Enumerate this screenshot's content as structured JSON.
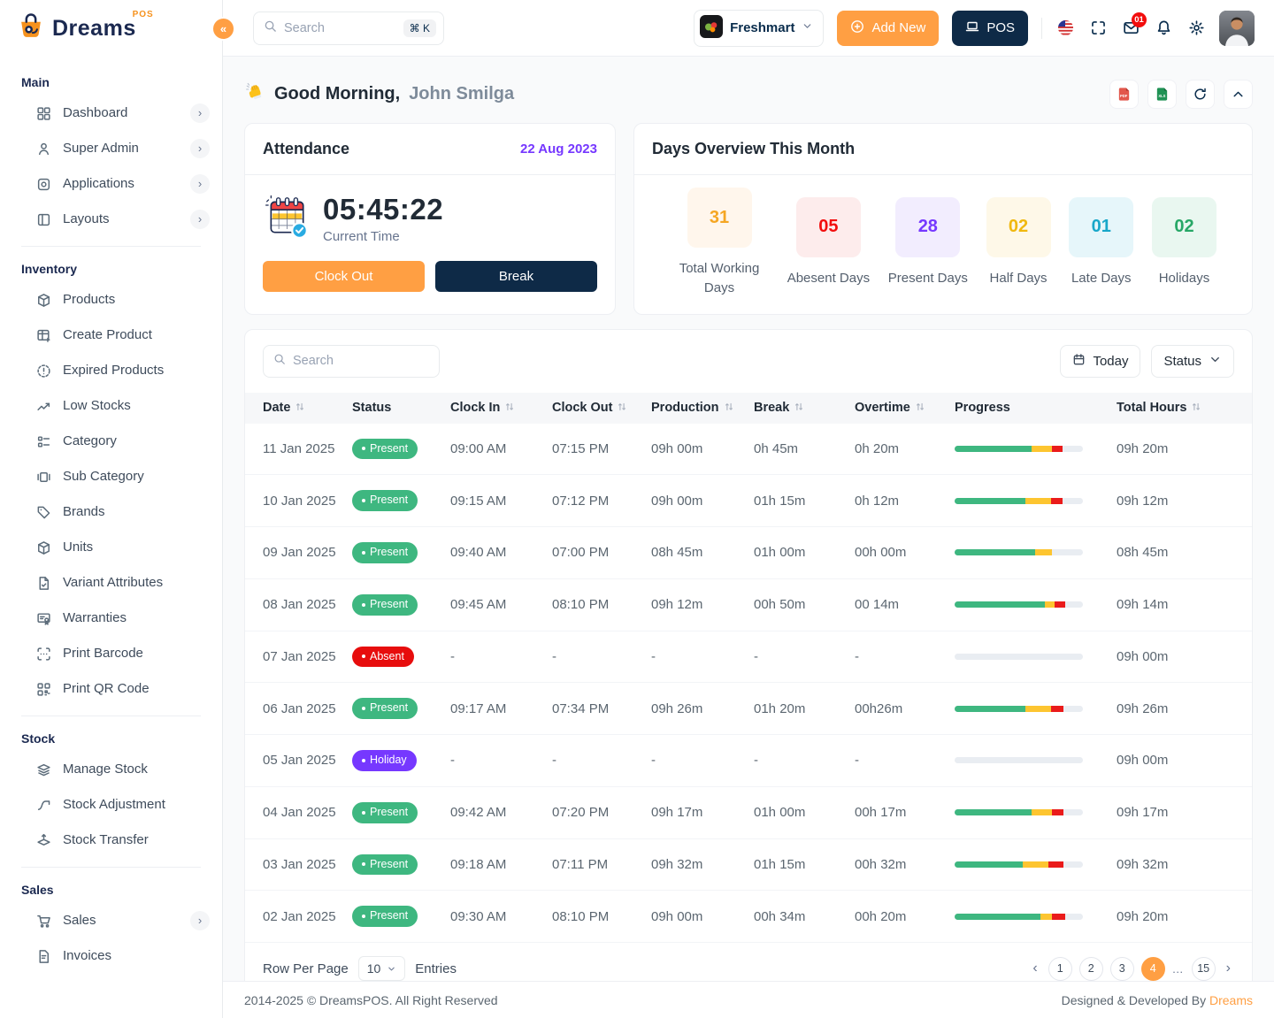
{
  "brand": {
    "name": "Dreams",
    "product": "POS"
  },
  "header": {
    "search_placeholder": "Search",
    "search_shortcut": "⌘ K",
    "store_name": "Freshmart",
    "add_new_label": "Add New",
    "pos_label": "POS",
    "mail_badge": "01"
  },
  "sidebar": {
    "sections": [
      {
        "label": "Main",
        "items": [
          {
            "icon": "grid",
            "label": "Dashboard",
            "chevron": true
          },
          {
            "icon": "user",
            "label": "Super Admin",
            "chevron": true
          },
          {
            "icon": "apps",
            "label": "Applications",
            "chevron": true
          },
          {
            "icon": "layout",
            "label": "Layouts",
            "chevron": true
          }
        ]
      },
      {
        "label": "Inventory",
        "items": [
          {
            "icon": "box",
            "label": "Products"
          },
          {
            "icon": "table-plus",
            "label": "Create Product"
          },
          {
            "icon": "alert-circle",
            "label": "Expired Products"
          },
          {
            "icon": "trending-up",
            "label": "Low Stocks"
          },
          {
            "icon": "list",
            "label": "Category"
          },
          {
            "icon": "carousel",
            "label": "Sub Category"
          },
          {
            "icon": "tag",
            "label": "Brands"
          },
          {
            "icon": "box",
            "label": "Units"
          },
          {
            "icon": "file-check",
            "label": "Variant Attributes"
          },
          {
            "icon": "certificate",
            "label": "Warranties"
          },
          {
            "icon": "scan",
            "label": "Print Barcode"
          },
          {
            "icon": "qrcode",
            "label": "Print QR Code"
          }
        ]
      },
      {
        "label": "Stock",
        "items": [
          {
            "icon": "layers",
            "label": "Manage Stock"
          },
          {
            "icon": "adjustments",
            "label": "Stock Adjustment"
          },
          {
            "icon": "stack-push",
            "label": "Stock Transfer"
          }
        ]
      },
      {
        "label": "Sales",
        "items": [
          {
            "icon": "cart",
            "label": "Sales",
            "chevron": true
          },
          {
            "icon": "invoice",
            "label": "Invoices"
          }
        ]
      }
    ]
  },
  "page": {
    "greeting_prefix": "Good Morning,",
    "greeting_name": "John Smilga"
  },
  "attendance": {
    "title": "Attendance",
    "date": "22 Aug 2023",
    "time": "05:45:22",
    "time_label": "Current Time",
    "clock_out_label": "Clock Out",
    "break_label": "Break"
  },
  "days_overview": {
    "title": "Days Overview This Month",
    "stats": [
      {
        "value": "31",
        "label": "Total Working Days",
        "color": "#F5A623",
        "bg": "#FFF6EC"
      },
      {
        "value": "05",
        "label": "Abesent Days",
        "color": "#F20D0D",
        "bg": "#FDECEC"
      },
      {
        "value": "28",
        "label": "Present Days",
        "color": "#7638FF",
        "bg": "#F2EDFE"
      },
      {
        "value": "02",
        "label": "Half Days",
        "color": "#F0B80E",
        "bg": "#FEF8E8"
      },
      {
        "value": "01",
        "label": "Late Days",
        "color": "#18A7C9",
        "bg": "#E6F6FA"
      },
      {
        "value": "02",
        "label": "Holidays",
        "color": "#27A766",
        "bg": "#E9F7F0"
      }
    ]
  },
  "attendance_table": {
    "search_placeholder": "Search",
    "today_label": "Today",
    "status_label": "Status",
    "columns": [
      {
        "label": "Date",
        "sortable": true
      },
      {
        "label": "Status",
        "sortable": false
      },
      {
        "label": "Clock In",
        "sortable": true
      },
      {
        "label": "Clock Out",
        "sortable": true
      },
      {
        "label": "Production",
        "sortable": true
      },
      {
        "label": "Break",
        "sortable": true
      },
      {
        "label": "Overtime",
        "sortable": true
      },
      {
        "label": "Progress",
        "sortable": false
      },
      {
        "label": "Total Hours",
        "sortable": true
      }
    ],
    "rows": [
      {
        "date": "11 Jan 2025",
        "status": "Present",
        "variant": "present",
        "clock_in": "09:00 AM",
        "clock_out": "07:15 PM",
        "production": "09h 00m",
        "break": "0h 45m",
        "overtime": "0h 20m",
        "progress": {
          "g": 60,
          "y": 16,
          "r": 8
        },
        "total": "09h 20m"
      },
      {
        "date": "10 Jan 2025",
        "status": "Present",
        "variant": "present",
        "clock_in": "09:15 AM",
        "clock_out": "07:12 PM",
        "production": "09h 00m",
        "break": "01h 15m",
        "overtime": "0h 12m",
        "progress": {
          "g": 55,
          "y": 20,
          "r": 9
        },
        "total": "09h 12m"
      },
      {
        "date": "09 Jan 2025",
        "status": "Present",
        "variant": "present",
        "clock_in": "09:40 AM",
        "clock_out": "07:00 PM",
        "production": "08h 45m",
        "break": "01h 00m",
        "overtime": "00h 00m",
        "progress": {
          "g": 63,
          "y": 13,
          "r": 0
        },
        "total": "08h 45m"
      },
      {
        "date": "08 Jan 2025",
        "status": "Present",
        "variant": "present",
        "clock_in": "09:45 AM",
        "clock_out": "08:10 PM",
        "production": "09h 12m",
        "break": "00h 50m",
        "overtime": "00 14m",
        "progress": {
          "g": 70,
          "y": 8,
          "r": 8
        },
        "total": "09h 14m"
      },
      {
        "date": "07 Jan 2025",
        "status": "Absent",
        "variant": "absent",
        "clock_in": "-",
        "clock_out": "-",
        "production": "-",
        "break": "-",
        "overtime": "-",
        "progress": {
          "g": 0,
          "y": 0,
          "r": 0
        },
        "total": "09h 00m"
      },
      {
        "date": "06 Jan 2025",
        "status": "Present",
        "variant": "present",
        "clock_in": "09:17 AM",
        "clock_out": "07:34 PM",
        "production": "09h 26m",
        "break": "01h 20m",
        "overtime": "00h26m",
        "progress": {
          "g": 55,
          "y": 20,
          "r": 10
        },
        "total": "09h 26m"
      },
      {
        "date": "05 Jan 2025",
        "status": "Holiday",
        "variant": "holiday",
        "clock_in": "-",
        "clock_out": "-",
        "production": "-",
        "break": "-",
        "overtime": "-",
        "progress": {
          "g": 0,
          "y": 0,
          "r": 0
        },
        "total": "09h 00m"
      },
      {
        "date": "04 Jan 2025",
        "status": "Present",
        "variant": "present",
        "clock_in": "09:42 AM",
        "clock_out": "07:20 PM",
        "production": "09h 17m",
        "break": "01h 00m",
        "overtime": "00h 17m",
        "progress": {
          "g": 60,
          "y": 16,
          "r": 9
        },
        "total": "09h 17m"
      },
      {
        "date": "03 Jan 2025",
        "status": "Present",
        "variant": "present",
        "clock_in": "09:18 AM",
        "clock_out": "07:11 PM",
        "production": "09h 32m",
        "break": "01h 15m",
        "overtime": "00h 32m",
        "progress": {
          "g": 53,
          "y": 20,
          "r": 12
        },
        "total": "09h 32m"
      },
      {
        "date": "02 Jan 2025",
        "status": "Present",
        "variant": "present",
        "clock_in": "09:30 AM",
        "clock_out": "08:10 PM",
        "production": "09h 00m",
        "break": "00h 34m",
        "overtime": "00h 20m",
        "progress": {
          "g": 67,
          "y": 9,
          "r": 10
        },
        "total": "09h 20m"
      }
    ]
  },
  "pagination": {
    "label_left": "Row Per Page",
    "per_page": "10",
    "label_right": "Entries",
    "pages": [
      "1",
      "2",
      "3",
      "4"
    ],
    "active": "4",
    "ellipsis": "…",
    "last_page": "15"
  },
  "footer": {
    "copyright": "2014-2025 © DreamsPOS. All Right Reserved",
    "credit_prefix": "Designed & Developed By",
    "credit_brand": "Dreams"
  },
  "colors": {
    "primary": "#FF9F43",
    "secondary": "#0E2A47",
    "badge_present": "#3EB780",
    "badge_absent": "#E70D0D",
    "badge_holiday": "#7638FF",
    "progress_green": "#3EB780",
    "progress_yellow": "#FDC530",
    "progress_red": "#EA1B1B"
  }
}
